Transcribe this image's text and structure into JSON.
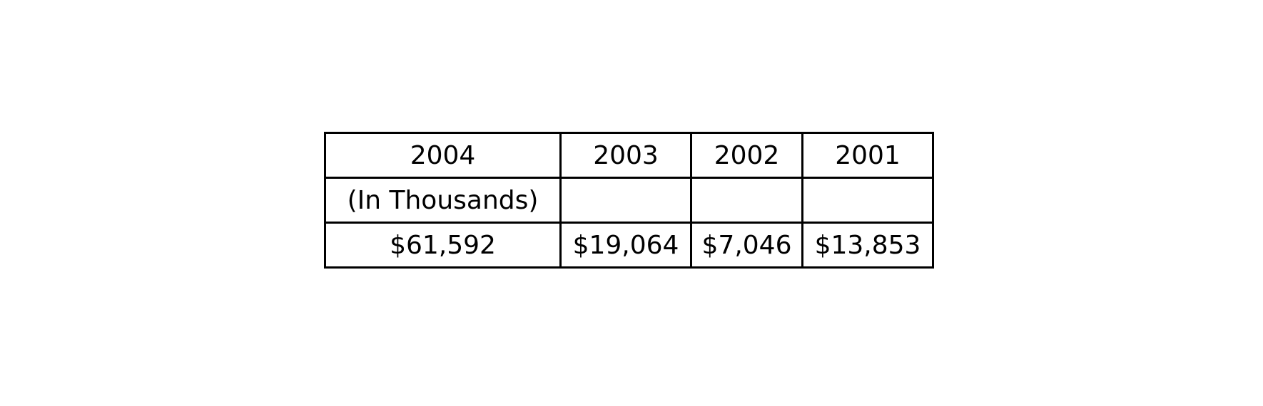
{
  "chart_data": {
    "type": "table",
    "columns": [
      "2004",
      "2003",
      "2002",
      "2001"
    ],
    "rows": [
      [
        "(In Thousands)",
        "",
        "",
        ""
      ],
      [
        "$61,592",
        "$19,064",
        "$7,046",
        "$13,853"
      ]
    ]
  }
}
